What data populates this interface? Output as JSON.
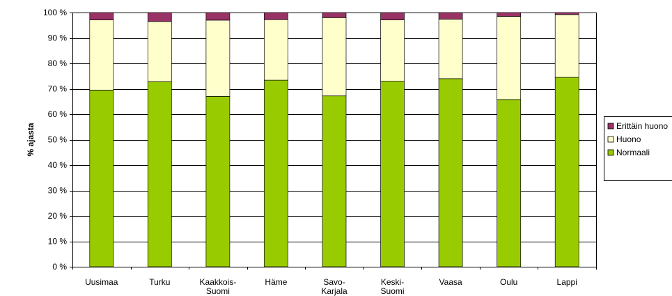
{
  "chart_data": {
    "type": "bar",
    "stacked": true,
    "categories": [
      "Uusimaa",
      "Turku",
      "Kaakkois-\nSuomi",
      "Häme",
      "Savo-\nKarjala",
      "Keski-\nSuomi",
      "Vaasa",
      "Oulu",
      "Lappi"
    ],
    "series": [
      {
        "name": "Normaali",
        "color": "#99cc00",
        "values": [
          69.5,
          72.8,
          67.0,
          73.4,
          67.2,
          73.0,
          74.0,
          65.8,
          74.5
        ]
      },
      {
        "name": "Huono",
        "color": "#ffffcc",
        "values": [
          27.6,
          23.7,
          30.0,
          23.8,
          30.8,
          24.1,
          23.4,
          32.7,
          24.7
        ]
      },
      {
        "name": "Erittäin huono",
        "color": "#993366",
        "values": [
          2.9,
          3.5,
          3.0,
          2.8,
          2.0,
          2.9,
          2.6,
          1.5,
          0.8
        ]
      }
    ],
    "title": "",
    "xlabel": "",
    "ylabel": "% ajasta",
    "ylim": [
      0,
      100
    ],
    "yticks": [
      "0 %",
      "10 %",
      "20 %",
      "30 %",
      "40 %",
      "50 %",
      "60 %",
      "70 %",
      "80 %",
      "90 %",
      "100 %"
    ],
    "grid": true,
    "legend": {
      "position": "right",
      "order": [
        "Erittäin huono",
        "Huono",
        "Normaali"
      ]
    }
  }
}
